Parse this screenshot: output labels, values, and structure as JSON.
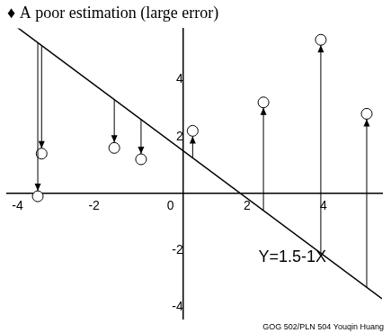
{
  "chart_data": {
    "type": "scatter",
    "title": "♦ A poor estimation (large error)",
    "x": [
      -3.8,
      -3.7,
      -1.8,
      -1.1,
      0.25,
      2.1,
      3.6,
      4.8
    ],
    "values": [
      -0.1,
      1.4,
      1.6,
      1.2,
      2.2,
      3.2,
      5.4,
      2.8
    ],
    "xlim": [
      -4.6,
      5.2
    ],
    "ylim": [
      -4.4,
      5.8
    ],
    "xticks": [
      -4,
      -2,
      0,
      2,
      4
    ],
    "yticks": [
      -4,
      -2,
      2,
      4
    ],
    "grid": false,
    "marker": "circle",
    "color": "#000000",
    "line": {
      "intercept": 1.5,
      "slope": -1,
      "label": "Y=1.5-1X"
    },
    "footer": "GOG 502/PLN 504 Youqin Huang"
  }
}
